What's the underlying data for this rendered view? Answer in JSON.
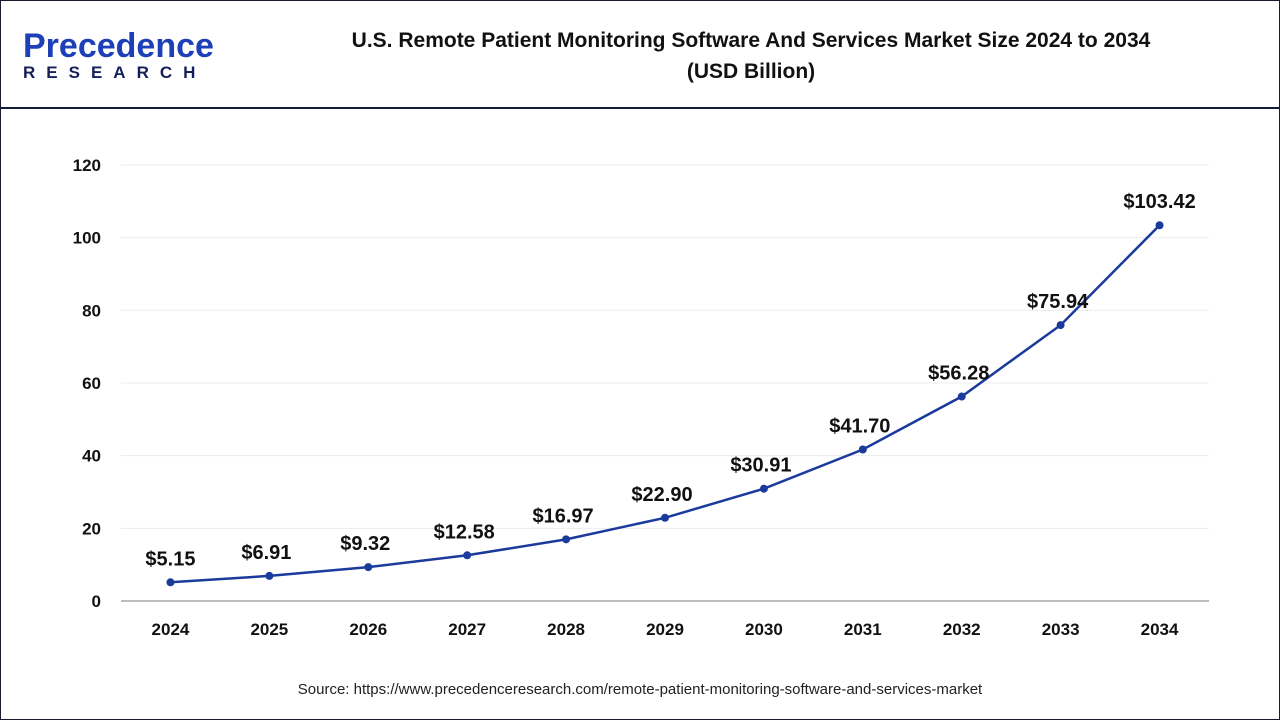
{
  "logo": {
    "line1": "Precedence",
    "line2": "RESEARCH"
  },
  "title_line1": "U.S. Remote Patient Monitoring Software And Services Market Size 2024 to 2034",
  "title_line2": "(USD Billion)",
  "source": "Source: https://www.precedenceresearch.com/remote-patient-monitoring-software-and-services-market",
  "chart_data": {
    "type": "line",
    "title": "U.S. Remote Patient Monitoring Software And Services Market Size 2024 to 2034 (USD Billion)",
    "categories": [
      "2024",
      "2025",
      "2026",
      "2027",
      "2028",
      "2029",
      "2030",
      "2031",
      "2032",
      "2033",
      "2034"
    ],
    "values": [
      5.15,
      6.91,
      9.32,
      12.58,
      16.97,
      22.9,
      30.91,
      41.7,
      56.28,
      75.94,
      103.42
    ],
    "labels": [
      "$5.15",
      "$6.91",
      "$9.32",
      "$12.58",
      "$16.97",
      "$22.90",
      "$30.91",
      "$41.70",
      "$56.28",
      "$75.94",
      "$103.42"
    ],
    "ylim": [
      0,
      120
    ],
    "yticks": [
      "0",
      "20",
      "40",
      "60",
      "80",
      "100",
      "120"
    ],
    "grid": true,
    "line_color": "#1a3a9c"
  }
}
